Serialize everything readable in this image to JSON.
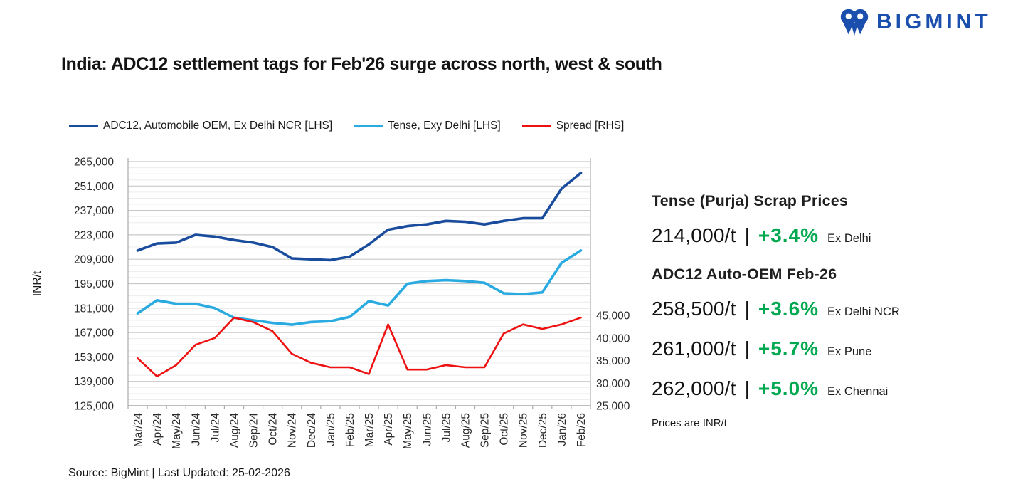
{
  "logo": {
    "text": "BIGMINT",
    "color": "#1b4fad"
  },
  "title": "India: ADC12 settlement tags for Feb'26 surge across north, west & south",
  "legend": [
    {
      "label": "ADC12, Automobile OEM, Ex Delhi NCR [LHS]",
      "color": "#1a4c9e"
    },
    {
      "label": "Tense, Exy Delhi [LHS]",
      "color": "#29abe2"
    },
    {
      "label": "Spread [RHS]",
      "color": "#ee1111"
    }
  ],
  "chart_data": {
    "type": "line",
    "title": "India: ADC12 settlement tags for Feb'26 surge across north, west & south",
    "xlabel": "",
    "ylabel": "INR/t",
    "grid": true,
    "legend_position": "top",
    "x": [
      "Mar/24",
      "Apr/24",
      "May/24",
      "Jun/24",
      "Jul/24",
      "Aug/24",
      "Sep/24",
      "Oct/24",
      "Nov/24",
      "Dec/24",
      "Jan/25",
      "Feb/25",
      "Mar/25",
      "Apr/25",
      "May/25",
      "Jun/25",
      "Jul/25",
      "Aug/25",
      "Sep/25",
      "Oct/25",
      "Nov/25",
      "Dec/25",
      "Jan/26",
      "Feb/26"
    ],
    "left_axis": {
      "label": "INR/t",
      "min": 125000,
      "max": 265000,
      "major_step": 14000,
      "minor_step": 3500,
      "ticks": [
        "265,000",
        "251,000",
        "237,000",
        "223,000",
        "209,000",
        "195,000",
        "181,000",
        "167,000",
        "153,000",
        "139,000",
        "125,000"
      ]
    },
    "right_axis": {
      "min": 25000,
      "max": 45000,
      "major_step": 5000,
      "ticks": [
        "45,000",
        "40,000",
        "35,000",
        "30,000",
        "25,000"
      ]
    },
    "series": [
      {
        "name": "ADC12, Automobile OEM, Ex Delhi NCR [LHS]",
        "axis": "left",
        "color": "#1a4c9e",
        "width": 3.6,
        "values": [
          214000,
          218000,
          218500,
          223000,
          222000,
          220000,
          218500,
          216000,
          209500,
          209000,
          208500,
          210500,
          217500,
          226000,
          228000,
          229000,
          231000,
          230500,
          229000,
          231000,
          232500,
          232500,
          249500,
          258500
        ]
      },
      {
        "name": "Tense, Exy Delhi [LHS]",
        "axis": "left",
        "color": "#29abe2",
        "width": 3.6,
        "values": [
          178000,
          185500,
          183500,
          183500,
          181000,
          175500,
          174000,
          172500,
          171500,
          173000,
          173500,
          176000,
          185000,
          182500,
          195000,
          196500,
          197000,
          196500,
          195500,
          189500,
          189000,
          190000,
          207000,
          214000
        ]
      },
      {
        "name": "Spread [RHS]",
        "axis": "right",
        "color": "#ee1111",
        "width": 2.6,
        "values": [
          35500,
          31500,
          34000,
          38500,
          40000,
          44500,
          43500,
          41500,
          36500,
          34500,
          33500,
          33500,
          32000,
          43000,
          33000,
          33000,
          34000,
          33500,
          33500,
          41000,
          43000,
          42000,
          43000,
          44500
        ]
      }
    ]
  },
  "panel": {
    "sections": [
      {
        "heading": "Tense (Purja) Scrap Prices",
        "rows": [
          {
            "price": "214,000/t",
            "sep": "|",
            "change": "+3.4%",
            "location": "Ex Delhi"
          }
        ]
      },
      {
        "heading": "ADC12 Auto-OEM Feb-26",
        "rows": [
          {
            "price": "258,500/t",
            "sep": "|",
            "change": "+3.6%",
            "location": "Ex Delhi NCR"
          },
          {
            "price": "261,000/t",
            "sep": "|",
            "change": "+5.7%",
            "location": "Ex Pune"
          },
          {
            "price": "262,000/t",
            "sep": "|",
            "change": "+5.0%",
            "location": "Ex Chennai"
          }
        ]
      }
    ],
    "note": "Prices are INR/t"
  },
  "source": "Source: BigMint | Last Updated: 25-02-2026",
  "colors": {
    "brand_blue": "#1b4fad",
    "adc12_line": "#1a4c9e",
    "tense_line": "#29abe2",
    "spread_line": "#ee1111",
    "positive_green": "#00a84f",
    "major_grid": "#c8c8c8",
    "minor_grid": "#ececec",
    "axis_line": "#aaaaaa",
    "axis_text": "#2b2b2b"
  }
}
